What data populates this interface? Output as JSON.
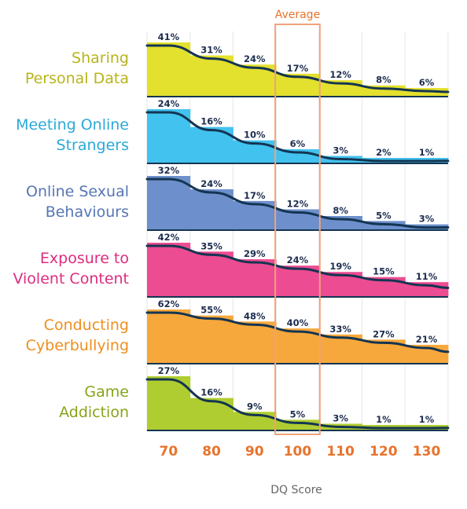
{
  "chart_data": {
    "type": "bar",
    "x": [
      70,
      80,
      90,
      100,
      110,
      120,
      130
    ],
    "x_tick_labels": [
      "70",
      "80",
      "90",
      "100",
      "110",
      "120",
      "130"
    ],
    "xlabel": "DQ Score",
    "highlight": {
      "x": 100,
      "label": "Average",
      "color": "#f0a27a"
    },
    "value_format": "percent",
    "ylim": [
      0,
      70
    ],
    "grid": "vertical",
    "curve_color": "#143552",
    "series": [
      {
        "name": "Sharing Personal Data",
        "label_lines": [
          "Sharing",
          "Personal Data"
        ],
        "color": "#e3e02e",
        "label_color": "#b8b41a",
        "values": [
          41,
          31,
          24,
          17,
          12,
          8,
          6
        ],
        "value_labels": [
          "41%",
          "31%",
          "24%",
          "17%",
          "12%",
          "8%",
          "6%"
        ]
      },
      {
        "name": "Meeting Online Strangers",
        "label_lines": [
          "Meeting Online",
          "Strangers"
        ],
        "color": "#42c2ee",
        "label_color": "#2ba9d8",
        "values": [
          24,
          16,
          10,
          6,
          3,
          2,
          1
        ],
        "value_labels": [
          "24%",
          "16%",
          "10%",
          "6%",
          "3%",
          "2%",
          "1%"
        ]
      },
      {
        "name": "Online Sexual Behaviours",
        "label_lines": [
          "Online Sexual",
          "Behaviours"
        ],
        "color": "#6d8fcb",
        "label_color": "#5676b6",
        "values": [
          32,
          24,
          17,
          12,
          8,
          5,
          3
        ],
        "value_labels": [
          "32%",
          "24%",
          "17%",
          "12%",
          "8%",
          "5%",
          "3%"
        ]
      },
      {
        "name": "Exposure to Violent Content",
        "label_lines": [
          "Exposure to",
          "Violent Content"
        ],
        "color": "#ec4c91",
        "label_color": "#dd2c7e",
        "values": [
          42,
          35,
          29,
          24,
          19,
          15,
          11
        ],
        "value_labels": [
          "42%",
          "35%",
          "29%",
          "24%",
          "19%",
          "15%",
          "11%"
        ]
      },
      {
        "name": "Conducting Cyberbullying",
        "label_lines": [
          "Conducting",
          "Cyberbullying"
        ],
        "color": "#f6a83c",
        "label_color": "#ef8e1e",
        "values": [
          62,
          55,
          48,
          40,
          33,
          27,
          21
        ],
        "value_labels": [
          "62%",
          "55%",
          "48%",
          "40%",
          "33%",
          "27%",
          "21%"
        ]
      },
      {
        "name": "Game Addiction",
        "label_lines": [
          "Game",
          "Addiction"
        ],
        "color": "#afcd30",
        "label_color": "#86a418",
        "values": [
          27,
          16,
          9,
          5,
          3,
          1,
          1
        ],
        "value_labels": [
          "27%",
          "16%",
          "9%",
          "5%",
          "3%",
          "1%",
          "1%"
        ]
      }
    ]
  }
}
